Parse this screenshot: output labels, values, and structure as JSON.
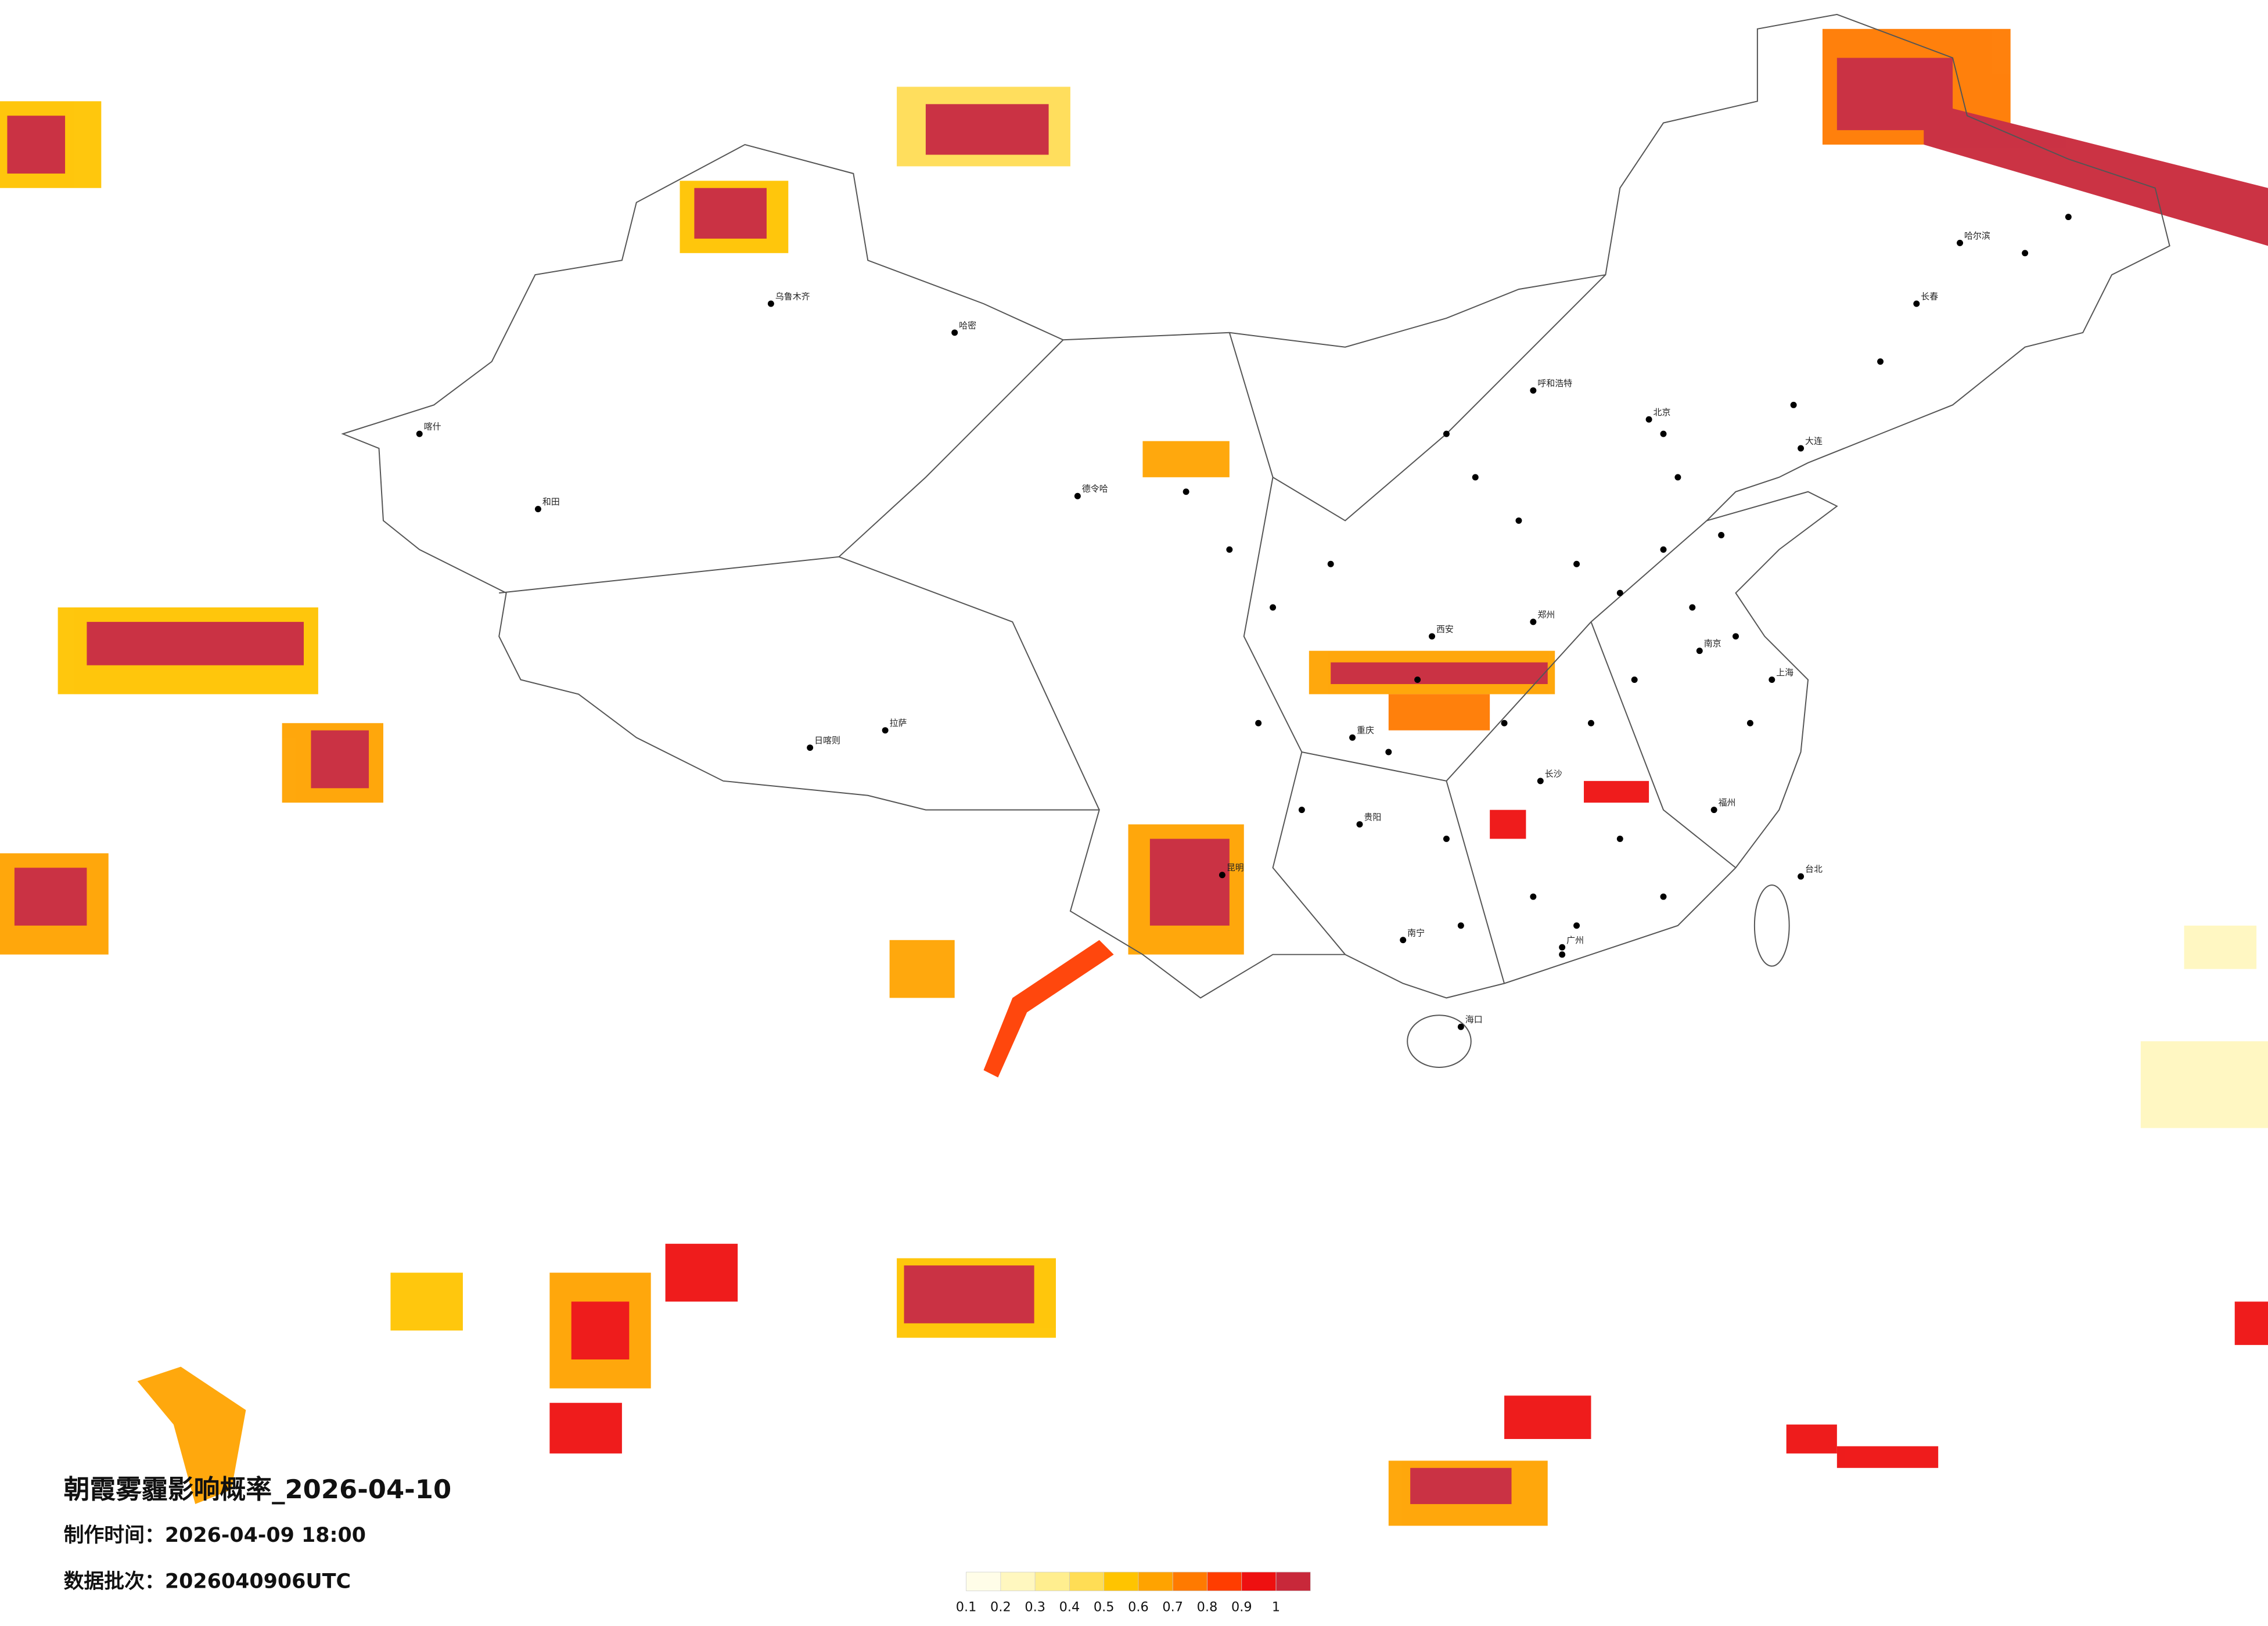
{
  "header": {
    "title": "朝霞雾霾影响概率_2026-04-10",
    "made_time": "制作时间：2026-04-09 18:00",
    "batch": "数据批次：2026040906UTC"
  },
  "legend": {
    "labels": [
      "0.1",
      "0.2",
      "0.3",
      "0.4",
      "0.5",
      "0.6",
      "0.7",
      "0.8",
      "0.9",
      "1"
    ],
    "colors": [
      "#fffde8",
      "#fff7bf",
      "#ffee8f",
      "#ffdd55",
      "#ffc400",
      "#ffa300",
      "#ff7a00",
      "#ff3d00",
      "#ee1010",
      "#c8283a"
    ]
  },
  "cities": [
    "乌鲁木齐",
    "哈密",
    "喀什",
    "和田",
    "拉萨",
    "日喀则",
    "德令哈",
    "呼和浩特",
    "北京",
    "哈尔滨",
    "长春",
    "长沙",
    "广州",
    "海口",
    "台北",
    "南宁",
    "昆明",
    "贵阳",
    "重庆",
    "西安",
    "郑州",
    "南京",
    "上海",
    "福州",
    "大连"
  ]
}
